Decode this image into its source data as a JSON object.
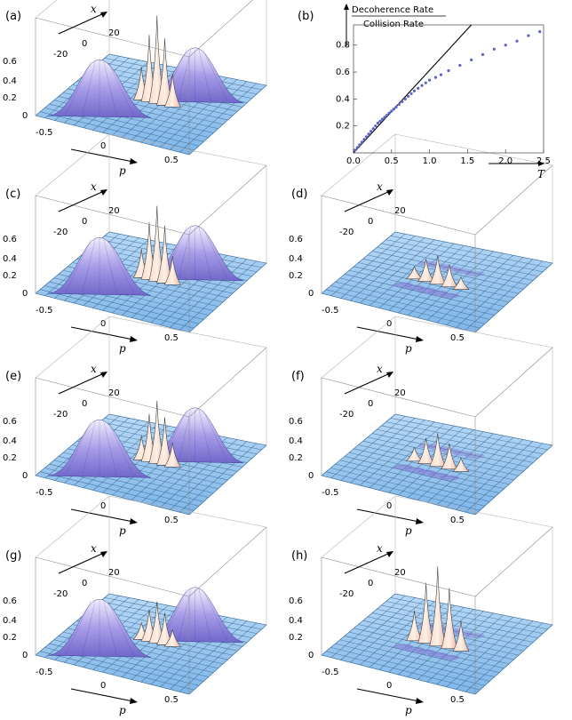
{
  "panels3d": [
    {
      "id": "a",
      "label": "(a)",
      "x_ticks": [
        "20",
        "0",
        "-20"
      ],
      "z_ticks": [
        "0.6",
        "0.4",
        "0.2",
        "0"
      ],
      "p_ticks": [
        "-0.5",
        "0",
        "0.5"
      ],
      "x_name": "x",
      "p_name": "p",
      "gaussians": true,
      "peak_scale": 1.0,
      "fringe_sign": 1
    },
    {
      "id": "c",
      "label": "(c)",
      "x_ticks": [
        "20",
        "0",
        "-20"
      ],
      "z_ticks": [
        "0.6",
        "0.4",
        "0.2",
        "0"
      ],
      "p_ticks": [
        "-0.5",
        "0",
        "0.5"
      ],
      "x_name": "x",
      "p_name": "p",
      "gaussians": true,
      "peak_scale": 0.85,
      "fringe_sign": 1
    },
    {
      "id": "d",
      "label": "(d)",
      "x_ticks": [
        "20",
        "0",
        "-20"
      ],
      "z_ticks": [
        "0.6",
        "0.4",
        "0.2",
        "0"
      ],
      "p_ticks": [
        "-0.5",
        "0",
        "0.5"
      ],
      "x_name": "x",
      "p_name": "p",
      "gaussians": false,
      "peak_scale": 0.3,
      "fringe_sign": 1
    },
    {
      "id": "e",
      "label": "(e)",
      "x_ticks": [
        "20",
        "0",
        "-20"
      ],
      "z_ticks": [
        "0.6",
        "0.4",
        "0.2",
        "0"
      ],
      "p_ticks": [
        "-0.5",
        "0",
        "0.5"
      ],
      "x_name": "x",
      "p_name": "p",
      "gaussians": true,
      "peak_scale": 0.7,
      "fringe_sign": 1
    },
    {
      "id": "f",
      "label": "(f)",
      "x_ticks": [
        "20",
        "0",
        "-20"
      ],
      "z_ticks": [
        "0.6",
        "0.4",
        "0.2",
        "0"
      ],
      "p_ticks": [
        "-0.5",
        "0",
        "0.5"
      ],
      "x_name": "x",
      "p_name": "p",
      "gaussians": false,
      "peak_scale": 0.35,
      "fringe_sign": 1
    },
    {
      "id": "g",
      "label": "(g)",
      "x_ticks": [
        "20",
        "0",
        "-20"
      ],
      "z_ticks": [
        "0.6",
        "0.4",
        "0.2",
        "0"
      ],
      "p_ticks": [
        "-0.5",
        "0",
        "0.5"
      ],
      "x_name": "x",
      "p_name": "p",
      "gaussians": true,
      "peak_scale": 0.45,
      "fringe_sign": 1
    },
    {
      "id": "h",
      "label": "(h)",
      "x_ticks": [
        "20",
        "0",
        "-20"
      ],
      "z_ticks": [
        "0.6",
        "0.4",
        "0.2",
        "0"
      ],
      "p_ticks": [
        "-0.5",
        "0",
        "0.5"
      ],
      "x_name": "x",
      "p_name": "p",
      "gaussians": false,
      "peak_scale": 0.9,
      "fringe_sign": 1
    }
  ],
  "chart_data": {
    "type": "scatter",
    "label": "(b)",
    "ylabel_top": "Decoherence Rate",
    "ylabel_bottom": "Collision Rate",
    "xlabel": "T",
    "x_ticks": [
      "0.0",
      "0.5",
      "1.0",
      "1.5",
      "2.0",
      "2.5"
    ],
    "y_ticks": [
      "0.2",
      "0.4",
      "0.6",
      "0.8"
    ],
    "xlim": [
      0,
      2.5
    ],
    "ylim": [
      0,
      0.95
    ],
    "line": {
      "x": [
        0,
        1.55
      ],
      "y": [
        0,
        0.95
      ]
    },
    "points": {
      "x": [
        0.02,
        0.05,
        0.08,
        0.11,
        0.14,
        0.17,
        0.2,
        0.23,
        0.26,
        0.29,
        0.32,
        0.35,
        0.38,
        0.41,
        0.44,
        0.47,
        0.5,
        0.53,
        0.56,
        0.6,
        0.64,
        0.68,
        0.72,
        0.76,
        0.8,
        0.85,
        0.9,
        0.95,
        1.0,
        1.08,
        1.15,
        1.25,
        1.4,
        1.55,
        1.7,
        1.85,
        2.0,
        2.15,
        2.3,
        2.45
      ],
      "y": [
        0.02,
        0.04,
        0.06,
        0.08,
        0.1,
        0.12,
        0.14,
        0.16,
        0.18,
        0.2,
        0.22,
        0.235,
        0.25,
        0.265,
        0.28,
        0.295,
        0.31,
        0.325,
        0.34,
        0.36,
        0.38,
        0.4,
        0.42,
        0.44,
        0.46,
        0.48,
        0.5,
        0.52,
        0.54,
        0.56,
        0.58,
        0.61,
        0.65,
        0.69,
        0.73,
        0.77,
        0.8,
        0.83,
        0.87,
        0.9
      ]
    }
  }
}
